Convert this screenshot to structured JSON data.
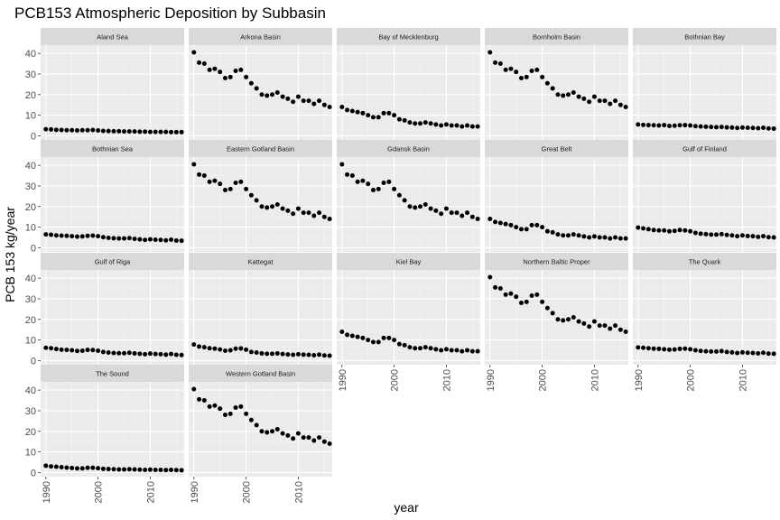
{
  "chart_data": {
    "type": "scatter",
    "title": "PCB153 Atmospheric Deposition by Subbasin",
    "xlabel": "year",
    "ylabel": "PCB 153 kg/year",
    "xlim": [
      1989,
      2016.5
    ],
    "ylim": [
      -2,
      44
    ],
    "x_ticks": [
      1990,
      2000,
      2010
    ],
    "y_ticks": [
      0,
      10,
      20,
      30,
      40
    ],
    "grid": true,
    "facet_layout": {
      "ncol": 5,
      "nrow": 4
    },
    "years": [
      1990,
      1991,
      1992,
      1993,
      1994,
      1995,
      1996,
      1997,
      1998,
      1999,
      2000,
      2001,
      2002,
      2003,
      2004,
      2005,
      2006,
      2007,
      2008,
      2009,
      2010,
      2011,
      2012,
      2013,
      2014,
      2015,
      2016
    ],
    "series": [
      {
        "name": "Aland Sea",
        "values": [
          3.2,
          3.1,
          2.9,
          2.8,
          2.7,
          2.7,
          2.6,
          2.7,
          2.7,
          2.8,
          2.6,
          2.4,
          2.3,
          2.2,
          2.2,
          2.1,
          2.1,
          2.1,
          2.0,
          2.0,
          1.9,
          1.9,
          1.9,
          1.9,
          1.8,
          1.8,
          1.8
        ]
      },
      {
        "name": "Arkona Basin",
        "values": [
          40.5,
          35.5,
          35.0,
          32.0,
          32.5,
          31.0,
          28.0,
          28.5,
          31.5,
          32.0,
          28.5,
          25.5,
          23.0,
          20.0,
          19.5,
          20.0,
          21.0,
          19.0,
          18.0,
          16.5,
          19.0,
          17.0,
          17.0,
          15.5,
          17.0,
          15.0,
          14.0
        ]
      },
      {
        "name": "Bay of Mecklenburg",
        "values": [
          14.0,
          12.5,
          12.0,
          11.5,
          11.0,
          10.0,
          9.0,
          9.0,
          11.0,
          11.0,
          10.0,
          8.0,
          7.5,
          6.5,
          6.0,
          6.0,
          6.5,
          6.0,
          5.5,
          5.0,
          5.5,
          5.0,
          5.0,
          4.5,
          5.0,
          4.5,
          4.5
        ]
      },
      {
        "name": "Bornholm Basin",
        "values": [
          40.5,
          35.5,
          35.0,
          32.0,
          32.5,
          31.0,
          28.0,
          28.5,
          31.5,
          32.0,
          28.5,
          25.5,
          23.0,
          20.0,
          19.5,
          20.0,
          21.0,
          19.0,
          18.0,
          16.5,
          19.0,
          17.0,
          17.0,
          15.5,
          17.0,
          15.0,
          14.0
        ]
      },
      {
        "name": "Bothnian Bay",
        "values": [
          5.5,
          5.3,
          5.2,
          5.1,
          5.0,
          5.2,
          4.8,
          4.9,
          5.1,
          5.2,
          5.0,
          4.7,
          4.5,
          4.4,
          4.3,
          4.2,
          4.3,
          4.1,
          4.0,
          3.8,
          4.0,
          3.9,
          3.8,
          3.7,
          3.9,
          3.6,
          3.5
        ]
      },
      {
        "name": "Bothnian Sea",
        "values": [
          6.5,
          6.3,
          6.0,
          5.9,
          5.8,
          5.6,
          5.4,
          5.5,
          5.8,
          5.9,
          5.6,
          5.1,
          4.8,
          4.6,
          4.5,
          4.5,
          4.7,
          4.3,
          4.1,
          3.8,
          4.1,
          3.9,
          3.8,
          3.6,
          3.9,
          3.5,
          3.4
        ]
      },
      {
        "name": "Eastern Gotland Basin",
        "values": [
          40.5,
          35.5,
          35.0,
          32.0,
          32.5,
          31.0,
          28.0,
          28.5,
          31.5,
          32.0,
          28.5,
          25.5,
          23.0,
          20.0,
          19.5,
          20.0,
          21.0,
          19.0,
          18.0,
          16.5,
          19.0,
          17.0,
          17.0,
          15.5,
          17.0,
          15.0,
          14.0
        ]
      },
      {
        "name": "Gdansk Basin",
        "values": [
          40.5,
          35.5,
          35.0,
          32.0,
          32.5,
          31.0,
          28.0,
          28.5,
          31.5,
          32.0,
          28.5,
          25.5,
          23.0,
          20.0,
          19.5,
          20.0,
          21.0,
          19.0,
          18.0,
          16.5,
          19.0,
          17.0,
          17.0,
          15.5,
          17.0,
          15.0,
          14.0
        ]
      },
      {
        "name": "Great Belt",
        "values": [
          14.0,
          12.5,
          12.0,
          11.5,
          11.0,
          10.0,
          9.0,
          9.0,
          11.0,
          11.0,
          10.0,
          8.0,
          7.5,
          6.5,
          6.0,
          6.0,
          6.5,
          6.0,
          5.5,
          5.0,
          5.5,
          5.0,
          5.0,
          4.5,
          5.0,
          4.5,
          4.5
        ]
      },
      {
        "name": "Gulf of Finland",
        "values": [
          9.8,
          9.4,
          9.0,
          8.6,
          8.4,
          8.4,
          8.0,
          8.2,
          8.6,
          8.4,
          8.0,
          7.2,
          6.8,
          6.6,
          6.4,
          6.4,
          6.6,
          6.2,
          6.0,
          5.6,
          6.0,
          5.7,
          5.6,
          5.3,
          5.6,
          5.1,
          5.0
        ]
      },
      {
        "name": "Gulf of Riga",
        "values": [
          6.2,
          6.0,
          5.6,
          5.3,
          5.2,
          5.0,
          4.7,
          4.8,
          5.2,
          5.1,
          4.8,
          4.2,
          3.9,
          3.7,
          3.6,
          3.6,
          3.8,
          3.5,
          3.3,
          3.1,
          3.4,
          3.2,
          3.1,
          2.9,
          3.2,
          2.8,
          2.7
        ]
      },
      {
        "name": "Kattegat",
        "values": [
          7.8,
          6.8,
          6.5,
          6.0,
          5.8,
          5.4,
          4.8,
          5.0,
          5.8,
          5.9,
          5.3,
          4.2,
          3.9,
          3.5,
          3.3,
          3.3,
          3.5,
          3.2,
          3.0,
          2.8,
          3.1,
          2.9,
          2.8,
          2.6,
          2.9,
          2.5,
          2.4
        ]
      },
      {
        "name": "Kiel Bay",
        "values": [
          14.0,
          12.5,
          12.0,
          11.5,
          11.0,
          10.0,
          9.0,
          9.0,
          11.0,
          11.0,
          10.0,
          8.0,
          7.5,
          6.5,
          6.0,
          6.0,
          6.5,
          6.0,
          5.5,
          5.0,
          5.5,
          5.0,
          5.0,
          4.5,
          5.0,
          4.5,
          4.5
        ]
      },
      {
        "name": "Northern Baltic Proper",
        "values": [
          40.5,
          35.5,
          35.0,
          32.0,
          32.5,
          31.0,
          28.0,
          28.5,
          31.5,
          32.0,
          28.5,
          25.5,
          23.0,
          20.0,
          19.5,
          20.0,
          21.0,
          19.0,
          18.0,
          16.5,
          19.0,
          17.0,
          17.0,
          15.5,
          17.0,
          15.0,
          14.0
        ]
      },
      {
        "name": "The Quark",
        "values": [
          6.4,
          6.2,
          6.0,
          5.8,
          5.7,
          5.5,
          5.3,
          5.4,
          5.7,
          5.8,
          5.5,
          5.0,
          4.7,
          4.5,
          4.4,
          4.4,
          4.6,
          4.2,
          4.0,
          3.7,
          4.0,
          3.8,
          3.7,
          3.5,
          3.8,
          3.4,
          3.3
        ]
      },
      {
        "name": "The Sound",
        "values": [
          3.3,
          3.0,
          2.8,
          2.6,
          2.4,
          2.2,
          2.0,
          2.0,
          2.3,
          2.3,
          2.1,
          1.8,
          1.7,
          1.6,
          1.5,
          1.5,
          1.6,
          1.5,
          1.4,
          1.3,
          1.4,
          1.3,
          1.3,
          1.2,
          1.3,
          1.2,
          1.1
        ]
      },
      {
        "name": "Western Gotland Basin",
        "values": [
          40.5,
          35.5,
          35.0,
          32.0,
          32.5,
          31.0,
          28.0,
          28.5,
          31.5,
          32.0,
          28.5,
          25.5,
          23.0,
          20.0,
          19.5,
          20.0,
          21.0,
          19.0,
          18.0,
          16.5,
          19.0,
          17.0,
          17.0,
          15.5,
          17.0,
          15.0,
          14.0
        ]
      }
    ],
    "colors": {
      "panel_bg": "#ebebeb",
      "strip_bg": "#d9d9d9",
      "grid_major": "#ffffff",
      "grid_minor": "#f4f4f4",
      "point": "#000000",
      "tick_text": "#4d4d4d"
    }
  }
}
